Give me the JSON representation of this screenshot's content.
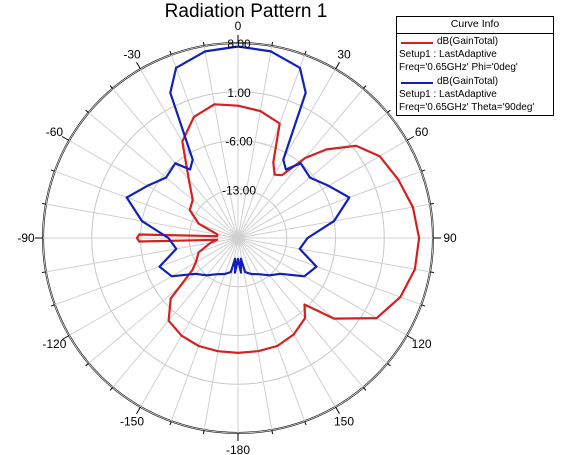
{
  "chart_data": {
    "type": "polar",
    "title": "Radiation Pattern 1",
    "angular_ticks": [
      "0",
      "30",
      "60",
      "90",
      "120",
      "150",
      "-180",
      "-150",
      "-120",
      "-90",
      "-60",
      "-30"
    ],
    "angular_tick_values": [
      0,
      30,
      60,
      90,
      120,
      150,
      180,
      -150,
      -120,
      -90,
      -60,
      -30
    ],
    "radial_ticks": [
      "8.00",
      "1.00",
      "-6.00",
      "-13.00"
    ],
    "radial_tick_values": [
      8,
      1,
      -6,
      -13
    ],
    "r_range": [
      -20,
      8
    ],
    "angle_unit": "deg",
    "grid": true,
    "legend": {
      "title": "Curve Info",
      "placement": "top-right",
      "entries": [
        {
          "name": "dB(GainTotal)",
          "line1": "Setup1 : LastAdaptive",
          "line2": "Freq='0.65GHz' Phi='0deg'",
          "color": "#d42020"
        },
        {
          "name": "dB(GainTotal)",
          "line1": "Setup1 : LastAdaptive",
          "line2": "Freq='0.65GHz' Theta='90deg'",
          "color": "#1020b8"
        }
      ]
    },
    "series": [
      {
        "name": "dB(GainTotal)",
        "color": "#d42020",
        "points": [
          [
            0,
            -1
          ],
          [
            10,
            -1.5
          ],
          [
            20,
            -2.5
          ],
          [
            25,
            -8
          ],
          [
            30,
            -9.5
          ],
          [
            35,
            -9
          ],
          [
            40,
            -5
          ],
          [
            45,
            -2
          ],
          [
            52,
            1.5
          ],
          [
            60,
            3.5
          ],
          [
            70,
            4.5
          ],
          [
            80,
            5.5
          ],
          [
            90,
            6
          ],
          [
            100,
            5.8
          ],
          [
            110,
            4.8
          ],
          [
            120,
            3
          ],
          [
            130,
            -2
          ],
          [
            135,
            -6.5
          ],
          [
            140,
            -5
          ],
          [
            150,
            -4
          ],
          [
            160,
            -3.5
          ],
          [
            170,
            -3.5
          ],
          [
            180,
            -3.5
          ],
          [
            -170,
            -3.5
          ],
          [
            -160,
            -3.5
          ],
          [
            -150,
            -3.8
          ],
          [
            -140,
            -4.5
          ],
          [
            -132,
            -7
          ],
          [
            -125,
            -12
          ],
          [
            -120,
            -13
          ],
          [
            -110,
            -14
          ],
          [
            -100,
            -16
          ],
          [
            -95,
            -17
          ],
          [
            -92,
            -5.8
          ],
          [
            -90,
            -5.5
          ],
          [
            -88,
            -5.8
          ],
          [
            -85,
            -17
          ],
          [
            -80,
            -17
          ],
          [
            -70,
            -14
          ],
          [
            -60,
            -12
          ],
          [
            -50,
            -11.5
          ],
          [
            -40,
            -9
          ],
          [
            -30,
            -4
          ],
          [
            -20,
            -1.5
          ],
          [
            -10,
            -0.5
          ]
        ]
      },
      {
        "name": "dB(GainTotal)",
        "color": "#1020b8",
        "points": [
          [
            0,
            7.5
          ],
          [
            10,
            7.2
          ],
          [
            20,
            6
          ],
          [
            25,
            3
          ],
          [
            30,
            -7
          ],
          [
            35,
            -8
          ],
          [
            40,
            -6
          ],
          [
            50,
            -6.5
          ],
          [
            60,
            -5
          ],
          [
            70,
            -3
          ],
          [
            80,
            -6
          ],
          [
            90,
            -10
          ],
          [
            100,
            -11
          ],
          [
            110,
            -8
          ],
          [
            120,
            -9
          ],
          [
            130,
            -12
          ],
          [
            140,
            -13
          ],
          [
            150,
            -14
          ],
          [
            160,
            -14.5
          ],
          [
            168,
            -15
          ],
          [
            172,
            -17
          ],
          [
            175,
            -15
          ],
          [
            180,
            -17
          ],
          [
            -175,
            -15
          ],
          [
            -172,
            -17
          ],
          [
            -168,
            -15
          ],
          [
            -160,
            -14.5
          ],
          [
            -150,
            -14
          ],
          [
            -140,
            -13
          ],
          [
            -130,
            -12
          ],
          [
            -120,
            -9
          ],
          [
            -110,
            -8
          ],
          [
            -100,
            -11
          ],
          [
            -90,
            -10
          ],
          [
            -80,
            -6
          ],
          [
            -70,
            -3
          ],
          [
            -60,
            -5
          ],
          [
            -50,
            -6.5
          ],
          [
            -40,
            -6
          ],
          [
            -35,
            -8
          ],
          [
            -30,
            -7
          ],
          [
            -25,
            3
          ],
          [
            -20,
            6
          ],
          [
            -10,
            7.2
          ]
        ]
      }
    ]
  }
}
